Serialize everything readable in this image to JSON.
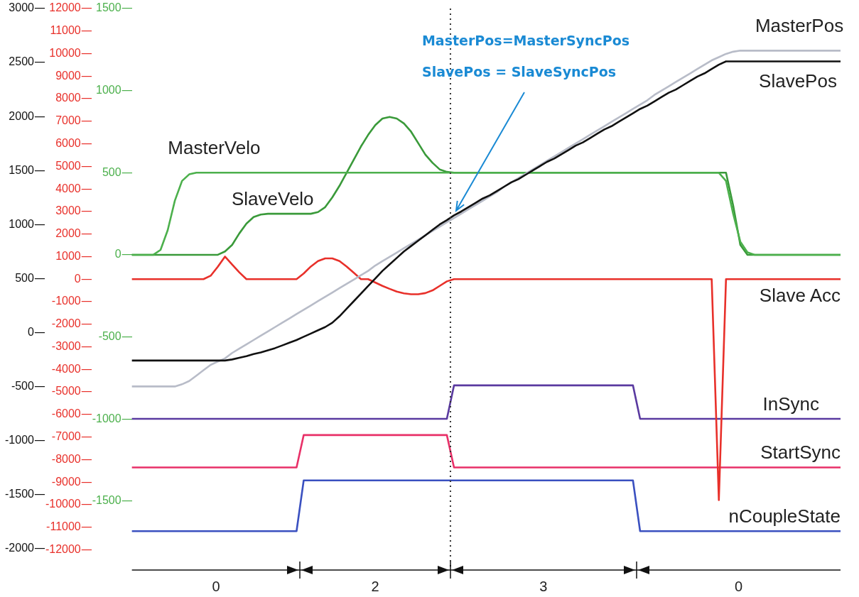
{
  "chart_data": {
    "type": "line",
    "categories": [
      null,
      null,
      null,
      null,
      null,
      null,
      null,
      null,
      null,
      null,
      null,
      null,
      null,
      null,
      null,
      null,
      null,
      null,
      null,
      null,
      null,
      null,
      null,
      null,
      null,
      null,
      null,
      null,
      null,
      null,
      null,
      null,
      null,
      null,
      null,
      null,
      null,
      null,
      null,
      null,
      null,
      null,
      null,
      null,
      null,
      null,
      null,
      null,
      null,
      null,
      null,
      null,
      null,
      null,
      null,
      null,
      null,
      null,
      null,
      null,
      null,
      null,
      null,
      null,
      null,
      null,
      null,
      null,
      null,
      null,
      null,
      null,
      null,
      null,
      null,
      null,
      null,
      null,
      null,
      null,
      null,
      null,
      null,
      null,
      null,
      null,
      null,
      null,
      null,
      null,
      null,
      null,
      null,
      null,
      null,
      null,
      null,
      null,
      null,
      null
    ],
    "ylim": [
      -1920,
      1500
    ],
    "yticks": [
      -1500,
      -1000,
      -500,
      0,
      500,
      1000,
      1500
    ],
    "y2lim": [
      -2200,
      3000
    ],
    "y2ticks": [
      -2000,
      -1500,
      -1000,
      -500,
      0,
      500,
      1000,
      1500,
      2000,
      2500,
      3000
    ],
    "y3lim": [
      -12900,
      12000
    ],
    "y3ticks": [
      -12000,
      -11000,
      -10000,
      -9000,
      -8000,
      -7000,
      -6000,
      -5000,
      -4000,
      -3000,
      -2000,
      -1000,
      0,
      1000,
      2000,
      3000,
      4000,
      5000,
      6000,
      7000,
      8000,
      9000,
      10000,
      11000,
      12000
    ],
    "tick_labels": "y",
    "grid": false,
    "legend": false,
    "marker": "none",
    "series": [
      {
        "name": "SlavePos",
        "color": "#111111",
        "axis": "y2",
        "values": [
          -260,
          -260,
          -260,
          -260,
          -260,
          -260,
          -260,
          -260,
          -260,
          -260,
          -260,
          -260,
          -260,
          -260,
          -250,
          -235,
          -220,
          -200,
          -185,
          -165,
          -145,
          -120,
          -95,
          -70,
          -40,
          -10,
          20,
          50,
          90,
          150,
          220,
          290,
          360,
          430,
          500,
          570,
          630,
          690,
          750,
          800,
          850,
          900,
          950,
          1000,
          1040,
          1085,
          1120,
          1160,
          1200,
          1240,
          1270,
          1310,
          1350,
          1390,
          1420,
          1460,
          1500,
          1540,
          1580,
          1610,
          1650,
          1690,
          1730,
          1760,
          1800,
          1840,
          1880,
          1910,
          1950,
          1990,
          2030,
          2070,
          2100,
          2140,
          2180,
          2220,
          2250,
          2290,
          2330,
          2370,
          2400,
          2440,
          2480,
          2510,
          2510,
          2510,
          2510,
          2510,
          2510,
          2510,
          2510,
          2510,
          2510,
          2510,
          2510,
          2510,
          2510,
          2510,
          2510,
          2510
        ]
      },
      {
        "name": "MasterPos",
        "color": "#b8bcc8",
        "axis": "y2",
        "values": [
          -500,
          -500,
          -500,
          -500,
          -500,
          -500,
          -500,
          -480,
          -450,
          -400,
          -350,
          -300,
          -270,
          -240,
          -190,
          -150,
          -110,
          -70,
          -30,
          10,
          50,
          90,
          130,
          170,
          210,
          250,
          290,
          330,
          370,
          410,
          450,
          490,
          530,
          570,
          620,
          660,
          700,
          740,
          780,
          820,
          860,
          900,
          940,
          980,
          1020,
          1060,
          1100,
          1140,
          1180,
          1220,
          1260,
          1300,
          1350,
          1390,
          1430,
          1470,
          1510,
          1550,
          1590,
          1630,
          1670,
          1710,
          1750,
          1790,
          1830,
          1870,
          1910,
          1950,
          1990,
          2030,
          2070,
          2110,
          2150,
          2200,
          2240,
          2280,
          2320,
          2360,
          2400,
          2440,
          2480,
          2520,
          2550,
          2580,
          2600,
          2610,
          2610,
          2610,
          2610,
          2610,
          2610,
          2610,
          2610,
          2610,
          2610,
          2610,
          2610,
          2610,
          2610,
          2610
        ]
      },
      {
        "name": "MasterVelo",
        "color": "#4cb04c",
        "values": [
          0,
          0,
          0,
          0,
          30,
          150,
          330,
          450,
          490,
          500,
          500,
          500,
          500,
          500,
          500,
          500,
          500,
          500,
          500,
          500,
          500,
          500,
          500,
          500,
          500,
          500,
          500,
          500,
          500,
          500,
          500,
          500,
          500,
          500,
          500,
          500,
          500,
          500,
          500,
          500,
          500,
          500,
          500,
          500,
          500,
          500,
          500,
          500,
          500,
          500,
          500,
          500,
          500,
          500,
          500,
          500,
          500,
          500,
          500,
          500,
          500,
          500,
          500,
          500,
          500,
          500,
          500,
          500,
          500,
          500,
          500,
          500,
          500,
          500,
          500,
          500,
          500,
          500,
          500,
          500,
          500,
          500,
          500,
          450,
          250,
          80,
          15,
          0,
          0,
          0,
          0,
          0,
          0,
          0,
          0,
          0,
          0,
          0,
          0,
          0
        ]
      },
      {
        "name": "SlaveVelo",
        "color": "#3a9a3a",
        "values": [
          0,
          0,
          0,
          0,
          0,
          0,
          0,
          0,
          0,
          0,
          0,
          0,
          0,
          20,
          60,
          130,
          190,
          230,
          245,
          250,
          250,
          250,
          250,
          250,
          250,
          250,
          260,
          290,
          350,
          420,
          500,
          580,
          660,
          730,
          790,
          830,
          840,
          830,
          800,
          750,
          680,
          610,
          560,
          520,
          505,
          500,
          500,
          500,
          500,
          500,
          500,
          500,
          500,
          500,
          500,
          500,
          500,
          500,
          500,
          500,
          500,
          500,
          500,
          500,
          500,
          500,
          500,
          500,
          500,
          500,
          500,
          500,
          500,
          500,
          500,
          500,
          500,
          500,
          500,
          500,
          500,
          500,
          500,
          500,
          300,
          60,
          0,
          0,
          0,
          0,
          0,
          0,
          0,
          0,
          0,
          0,
          0,
          0,
          0,
          0
        ]
      },
      {
        "name": "Slave Acc",
        "color": "#e8302a",
        "axis": "y3",
        "values": [
          0,
          0,
          0,
          0,
          0,
          0,
          0,
          0,
          0,
          0,
          0,
          150,
          550,
          1000,
          650,
          300,
          0,
          0,
          0,
          0,
          0,
          0,
          0,
          0,
          250,
          560,
          800,
          920,
          920,
          800,
          560,
          280,
          0,
          0,
          -150,
          -300,
          -430,
          -550,
          -630,
          -670,
          -670,
          -620,
          -500,
          -300,
          -100,
          0,
          0,
          0,
          0,
          0,
          0,
          0,
          0,
          0,
          0,
          0,
          0,
          0,
          0,
          0,
          0,
          0,
          0,
          0,
          0,
          0,
          0,
          0,
          0,
          0,
          0,
          0,
          0,
          0,
          0,
          0,
          0,
          0,
          0,
          0,
          0,
          0,
          -9800,
          0,
          0,
          0,
          0,
          0,
          0,
          0,
          0,
          0,
          0,
          0,
          0,
          0,
          0,
          0,
          0,
          0
        ]
      },
      {
        "name": "InSync",
        "color": "#5a3aa0",
        "axis": "y2",
        "values": [
          -800,
          -800,
          -800,
          -800,
          -800,
          -800,
          -800,
          -800,
          -800,
          -800,
          -800,
          -800,
          -800,
          -800,
          -800,
          -800,
          -800,
          -800,
          -800,
          -800,
          -800,
          -800,
          -800,
          -800,
          -800,
          -800,
          -800,
          -800,
          -800,
          -800,
          -800,
          -800,
          -800,
          -800,
          -800,
          -800,
          -800,
          -800,
          -800,
          -800,
          -800,
          -800,
          -800,
          -800,
          -800,
          -490,
          -490,
          -490,
          -490,
          -490,
          -490,
          -490,
          -490,
          -490,
          -490,
          -490,
          -490,
          -490,
          -490,
          -490,
          -490,
          -490,
          -490,
          -490,
          -490,
          -490,
          -490,
          -490,
          -490,
          -490,
          -490,
          -800,
          -800,
          -800,
          -800,
          -800,
          -800,
          -800,
          -800,
          -800,
          -800,
          -800,
          -800,
          -800,
          -800,
          -800,
          -800,
          -800,
          -800,
          -800,
          -800,
          -800,
          -800,
          -800,
          -800,
          -800,
          -800,
          -800,
          -800,
          -800
        ]
      },
      {
        "name": "StartSync",
        "color": "#e83068",
        "axis": "y2",
        "values": [
          -1250,
          -1250,
          -1250,
          -1250,
          -1250,
          -1250,
          -1250,
          -1250,
          -1250,
          -1250,
          -1250,
          -1250,
          -1250,
          -1250,
          -1250,
          -1250,
          -1250,
          -1250,
          -1250,
          -1250,
          -1250,
          -1250,
          -1250,
          -1250,
          -950,
          -950,
          -950,
          -950,
          -950,
          -950,
          -950,
          -950,
          -950,
          -950,
          -950,
          -950,
          -950,
          -950,
          -950,
          -950,
          -950,
          -950,
          -950,
          -950,
          -950,
          -1250,
          -1250,
          -1250,
          -1250,
          -1250,
          -1250,
          -1250,
          -1250,
          -1250,
          -1250,
          -1250,
          -1250,
          -1250,
          -1250,
          -1250,
          -1250,
          -1250,
          -1250,
          -1250,
          -1250,
          -1250,
          -1250,
          -1250,
          -1250,
          -1250,
          -1250,
          -1250,
          -1250,
          -1250,
          -1250,
          -1250,
          -1250,
          -1250,
          -1250,
          -1250,
          -1250,
          -1250,
          -1250,
          -1250,
          -1250,
          -1250,
          -1250,
          -1250,
          -1250,
          -1250,
          -1250,
          -1250,
          -1250,
          -1250,
          -1250,
          -1250,
          -1250,
          -1250,
          -1250,
          -1250
        ]
      },
      {
        "name": "nCoupleState",
        "color": "#3a50c0",
        "axis": "y2",
        "values": [
          -1840,
          -1840,
          -1840,
          -1840,
          -1840,
          -1840,
          -1840,
          -1840,
          -1840,
          -1840,
          -1840,
          -1840,
          -1840,
          -1840,
          -1840,
          -1840,
          -1840,
          -1840,
          -1840,
          -1840,
          -1840,
          -1840,
          -1840,
          -1840,
          -1370,
          -1370,
          -1370,
          -1370,
          -1370,
          -1370,
          -1370,
          -1370,
          -1370,
          -1370,
          -1370,
          -1370,
          -1370,
          -1370,
          -1370,
          -1370,
          -1370,
          -1370,
          -1370,
          -1370,
          -1370,
          -1370,
          -1370,
          -1370,
          -1370,
          -1370,
          -1370,
          -1370,
          -1370,
          -1370,
          -1370,
          -1370,
          -1370,
          -1370,
          -1370,
          -1370,
          -1370,
          -1370,
          -1370,
          -1370,
          -1370,
          -1370,
          -1370,
          -1370,
          -1370,
          -1370,
          -1370,
          -1840,
          -1840,
          -1840,
          -1840,
          -1840,
          -1840,
          -1840,
          -1840,
          -1840,
          -1840,
          -1840,
          -1840,
          -1840,
          -1840,
          -1840,
          -1840,
          -1840,
          -1840,
          -1840,
          -1840,
          -1840,
          -1840,
          -1840,
          -1840,
          -1840,
          -1840,
          -1840,
          -1840,
          -1840
        ]
      }
    ],
    "annotations": [
      "MasterPos=MasterSyncPos",
      "SlavePos = SlaveSyncPos",
      "0",
      "2",
      "3",
      "0"
    ]
  }
}
